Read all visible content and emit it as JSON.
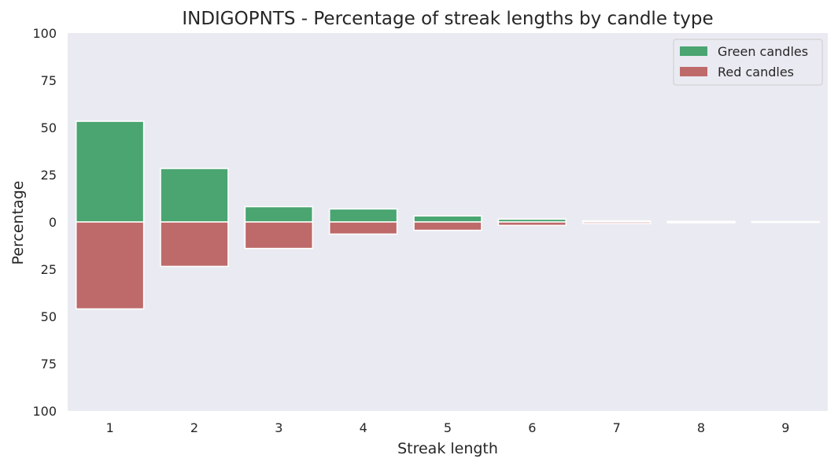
{
  "chart_data": {
    "type": "bar",
    "title": "INDIGOPNTS - Percentage of streak lengths by candle type",
    "xlabel": "Streak length",
    "ylabel": "Percentage",
    "categories": [
      "1",
      "2",
      "3",
      "4",
      "5",
      "6",
      "7",
      "8",
      "9"
    ],
    "series": [
      {
        "name": "Green candles",
        "values": [
          53.3,
          28.3,
          8.1,
          6.9,
          3.2,
          1.5,
          0.6,
          0.3,
          0.2
        ],
        "direction": "up"
      },
      {
        "name": "Red candles",
        "values": [
          46.0,
          23.5,
          14.0,
          6.4,
          4.4,
          1.8,
          0.8,
          0.4,
          0.2
        ],
        "direction": "down"
      }
    ],
    "ylim": [
      -100,
      100
    ],
    "ytick_values": [
      100,
      75,
      50,
      25,
      0,
      -25,
      -50,
      -75,
      -100
    ],
    "ytick_labels": [
      "100",
      "75",
      "50",
      "25",
      "0",
      "25",
      "50",
      "75",
      "100"
    ],
    "grid": false,
    "legend_position": "top-right",
    "colors": {
      "Green candles": "#4aa571",
      "Red candles": "#be6a6a",
      "plot_background": "#eaeaf2"
    }
  }
}
